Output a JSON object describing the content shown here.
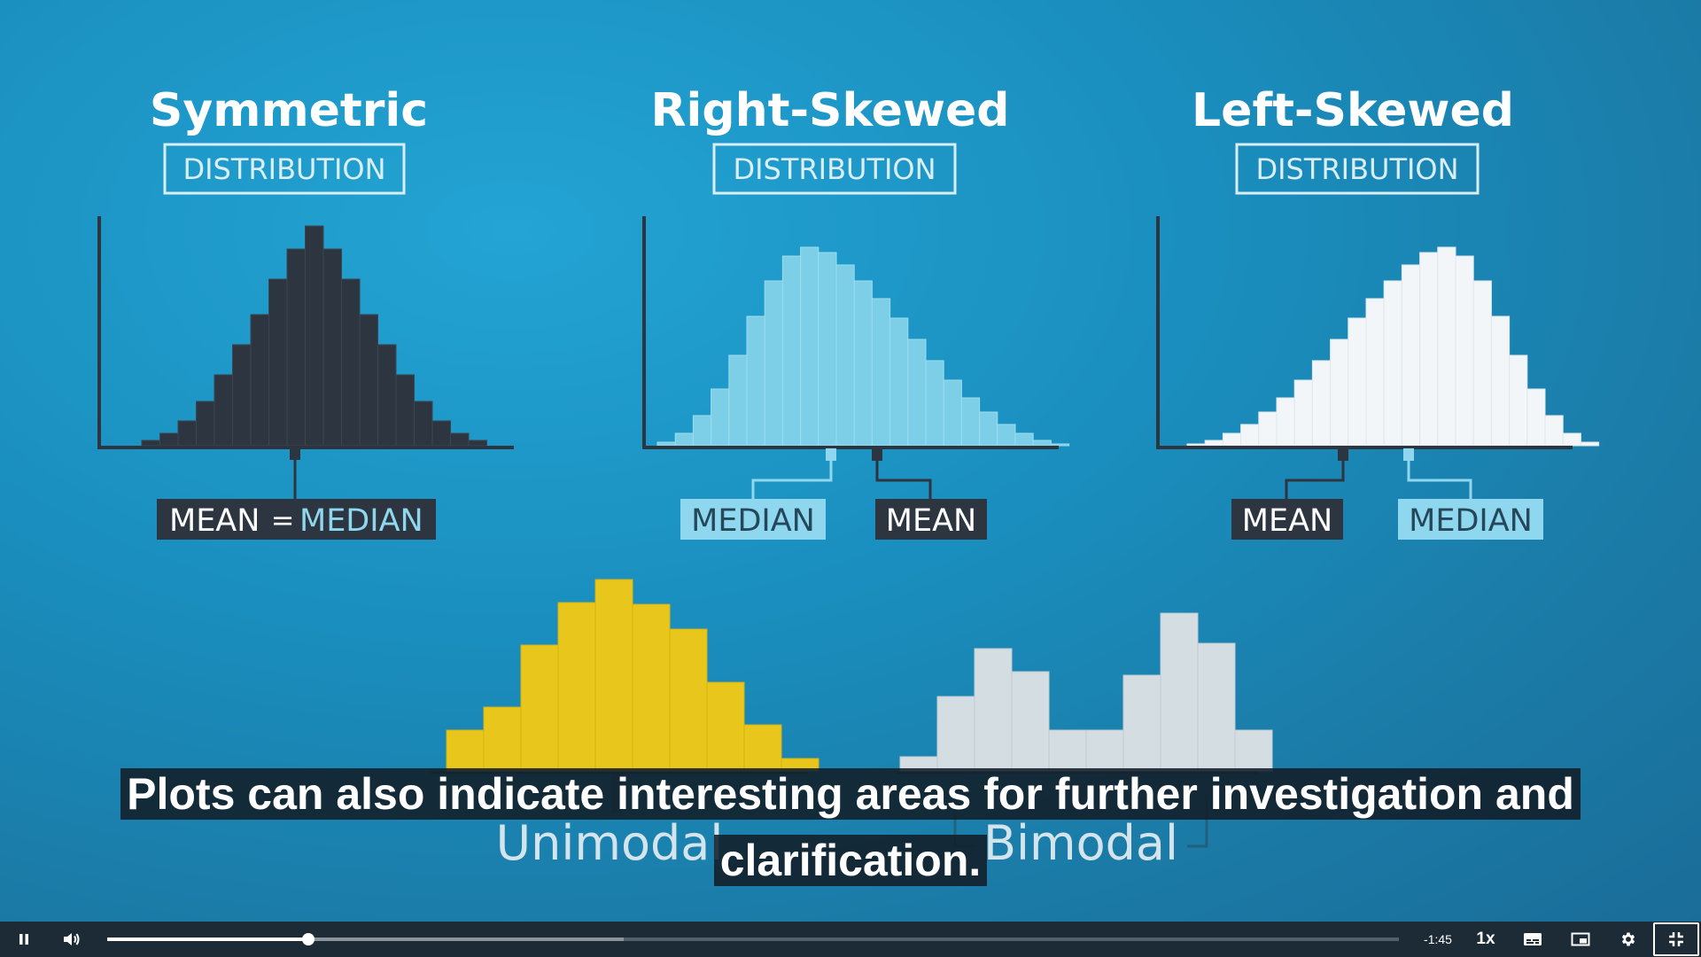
{
  "video": {
    "symmetric": {
      "title": "Symmetric",
      "tag": "DISTRIBUTION",
      "label_mean": "MEAN",
      "label_eq": "=",
      "label_median": "MEDIAN"
    },
    "right": {
      "title": "Right-Skewed",
      "tag": "DISTRIBUTION",
      "label_median": "MEDIAN",
      "label_mean": "MEAN"
    },
    "left": {
      "title": "Left-Skewed",
      "tag": "DISTRIBUTION",
      "label_mean": "MEAN",
      "label_median": "MEDIAN"
    },
    "unimodal": {
      "title": "Unimodal"
    },
    "bimodal": {
      "title": "Bimodal"
    }
  },
  "captions": {
    "line1": "Plots can also indicate interesting areas for further investigation and",
    "line2": "clarification."
  },
  "player": {
    "time_remaining": "-1:45",
    "speed": "1x",
    "progress_fraction": 0.156,
    "buffered_fraction": 0.4
  },
  "colors": {
    "dark_bars": "#2d3640",
    "light_blue_bars": "#7dcfe8",
    "white_bars": "#f2f6f8",
    "yellow_bars": "#e8c61c",
    "grey_bars": "#d4dde2"
  },
  "icons": {
    "play": "pause-icon",
    "volume": "speaker-icon",
    "captions": "cc-icon",
    "pip": "picture-in-picture-icon",
    "settings": "gear-icon",
    "fullscreen": "exit-fullscreen-icon"
  }
}
